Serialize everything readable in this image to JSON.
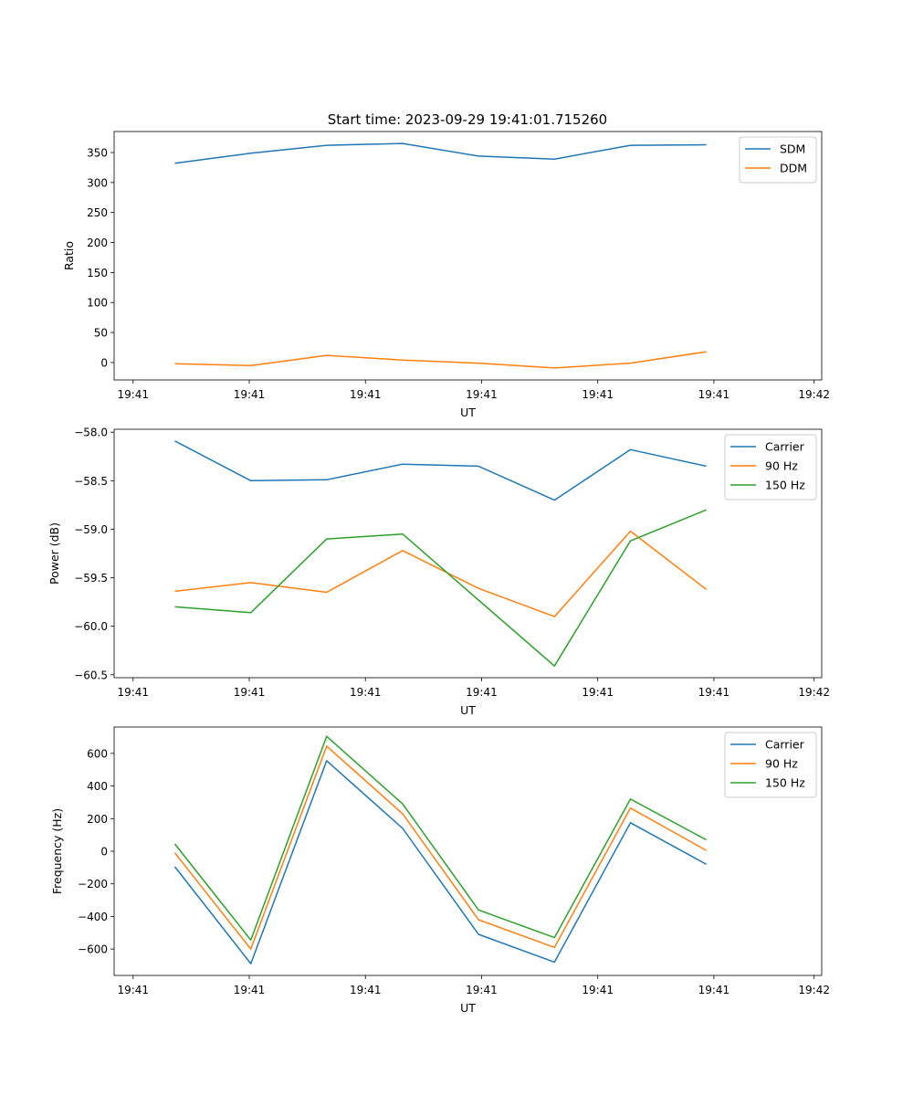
{
  "figure_title": "Start time: 2023-09-29 19:41:01.715260",
  "colors": {
    "blue": "#1f77b4",
    "orange": "#ff7f0e",
    "green": "#2ca02c"
  },
  "chart_data": [
    {
      "type": "line",
      "xlabel": "UT",
      "ylabel": "Ratio",
      "x": [
        1,
        2,
        3,
        4,
        5,
        6,
        7,
        8
      ],
      "xlim": [
        0.2,
        9.52
      ],
      "xticks": [
        0.45,
        1.98,
        3.51,
        5.04,
        6.57,
        8.1,
        9.42
      ],
      "xtick_labels": [
        "19:41",
        "19:41",
        "19:41",
        "19:41",
        "19:41",
        "19:41",
        "19:42"
      ],
      "ylim": [
        -29,
        385
      ],
      "yticks": [
        0,
        50,
        100,
        150,
        200,
        250,
        300,
        350
      ],
      "ytick_labels": [
        "0",
        "50",
        "100",
        "150",
        "200",
        "250",
        "300",
        "350"
      ],
      "legend_position": "upper right",
      "series": [
        {
          "name": "SDM",
          "color": "#1f77b4",
          "values": [
            332,
            349,
            362,
            365,
            344,
            339,
            362,
            363
          ]
        },
        {
          "name": "DDM",
          "color": "#ff7f0e",
          "values": [
            -2,
            -5,
            12,
            4,
            -1,
            -9,
            -1,
            18
          ]
        }
      ]
    },
    {
      "type": "line",
      "xlabel": "UT",
      "ylabel": "Power (dB)",
      "x": [
        1,
        2,
        3,
        4,
        5,
        6,
        7,
        8
      ],
      "xlim": [
        0.2,
        9.52
      ],
      "xticks": [
        0.45,
        1.98,
        3.51,
        5.04,
        6.57,
        8.1,
        9.42
      ],
      "xtick_labels": [
        "19:41",
        "19:41",
        "19:41",
        "19:41",
        "19:41",
        "19:41",
        "19:42"
      ],
      "ylim": [
        -60.53,
        -57.97
      ],
      "yticks": [
        -60.5,
        -60.0,
        -59.5,
        -59.0,
        -58.5,
        -58.0
      ],
      "ytick_labels": [
        "−60.5",
        "−60.0",
        "−59.5",
        "−59.0",
        "−58.5",
        "−58.0"
      ],
      "legend_position": "upper right",
      "series": [
        {
          "name": "Carrier",
          "color": "#1f77b4",
          "values": [
            -58.09,
            -58.5,
            -58.49,
            -58.33,
            -58.35,
            -58.7,
            -58.18,
            -58.35
          ]
        },
        {
          "name": "90 Hz",
          "color": "#ff7f0e",
          "values": [
            -59.64,
            -59.55,
            -59.65,
            -59.22,
            -59.61,
            -59.9,
            -59.02,
            -59.62
          ]
        },
        {
          "name": "150 Hz",
          "color": "#2ca02c",
          "values": [
            -59.8,
            -59.86,
            -59.1,
            -59.05,
            -59.73,
            -60.41,
            -59.12,
            -58.8
          ]
        }
      ]
    },
    {
      "type": "line",
      "xlabel": "UT",
      "ylabel": "Frequency (Hz)",
      "x": [
        1,
        2,
        3,
        4,
        5,
        6,
        7,
        8
      ],
      "xlim": [
        0.2,
        9.52
      ],
      "xticks": [
        0.45,
        1.98,
        3.51,
        5.04,
        6.57,
        8.1,
        9.42
      ],
      "xtick_labels": [
        "19:41",
        "19:41",
        "19:41",
        "19:41",
        "19:41",
        "19:41",
        "19:42"
      ],
      "ylim": [
        -762,
        762
      ],
      "yticks": [
        -600,
        -400,
        -200,
        0,
        200,
        400,
        600
      ],
      "ytick_labels": [
        "−600",
        "−400",
        "−200",
        "0",
        "200",
        "400",
        "600"
      ],
      "legend_position": "upper right",
      "series": [
        {
          "name": "Carrier",
          "color": "#1f77b4",
          "values": [
            -95,
            -690,
            555,
            140,
            -510,
            -680,
            175,
            -80
          ]
        },
        {
          "name": "90 Hz",
          "color": "#ff7f0e",
          "values": [
            -10,
            -600,
            645,
            230,
            -420,
            -590,
            265,
            5
          ]
        },
        {
          "name": "150 Hz",
          "color": "#2ca02c",
          "values": [
            45,
            -545,
            705,
            290,
            -360,
            -530,
            320,
            70
          ]
        }
      ]
    }
  ]
}
